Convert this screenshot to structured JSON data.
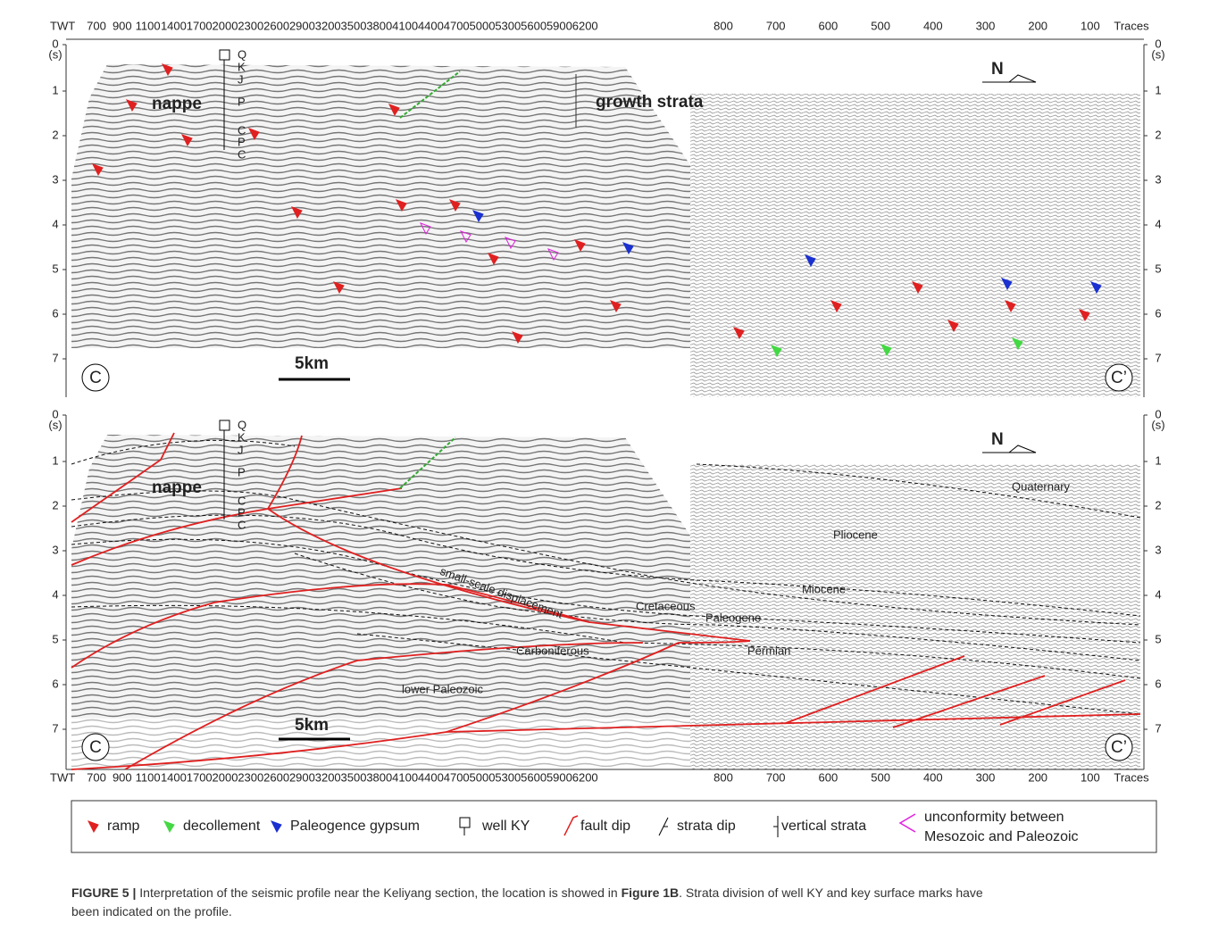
{
  "axes": {
    "time_label": "TWT",
    "time_unit": "(s)",
    "time_ticks": [
      "0",
      "1",
      "2",
      "3",
      "4",
      "5",
      "6",
      "7"
    ],
    "traces_left": [
      "700",
      "900",
      "1100",
      "1400",
      "1700",
      "2000",
      "2300",
      "2600",
      "2900",
      "3200",
      "3500",
      "3800",
      "4100",
      "4400",
      "4700",
      "5000",
      "5300",
      "5600",
      "5900",
      "6200"
    ],
    "traces_right": [
      "800",
      "700",
      "600",
      "500",
      "400",
      "300",
      "200",
      "100"
    ],
    "traces_unit": "Traces"
  },
  "panel_top": {
    "nappe": "nappe",
    "growth": "growth strata",
    "north": "N",
    "scale": "5km",
    "left_end": "C",
    "right_end": "C’",
    "well": [
      "Q",
      "K",
      "J",
      "P",
      "C",
      "P",
      "C"
    ]
  },
  "panel_bottom": {
    "nappe": "nappe",
    "north": "N",
    "scale": "5km",
    "left_end": "C",
    "right_end": "C’",
    "well": [
      "Q",
      "K",
      "J",
      "P",
      "C",
      "P",
      "C"
    ],
    "units": [
      "Quaternary",
      "Pliocene",
      "Miocene",
      "Cretaceous",
      "Paleogene",
      "Permian",
      "Carboniferous",
      "lower Paleozoic"
    ],
    "annotation": "small-scale displacement"
  },
  "legend": [
    "ramp",
    "decollement",
    "Paleogence gypsum",
    "well KY",
    "fault dip",
    "strata dip",
    "vertical strata",
    "unconformity between",
    "Mesozoic and Paleozoic"
  ],
  "caption": {
    "label": "FIGURE 5 |",
    "before": " Interpretation of the seismic profile near the Keliyang section, the location is showed in ",
    "ref": "Figure 1B",
    "after": ". Strata division of well KY and key surface marks have",
    "line2": "been indicated on the profile."
  }
}
